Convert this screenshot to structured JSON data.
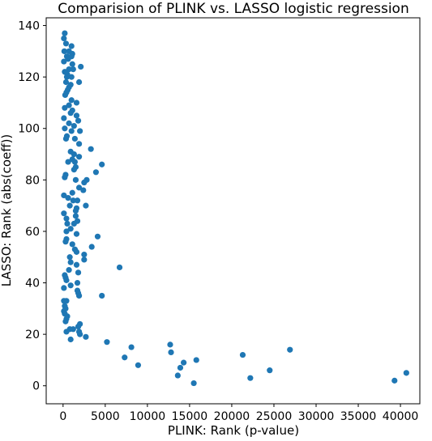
{
  "chart_data": {
    "type": "scatter",
    "title": "Comparision of PLINK vs. LASSO logistic regression",
    "xlabel": "PLINK: Rank (p-value)",
    "ylabel": "LASSO: Rank (abs(coeff))",
    "xlim": [
      -2000,
      42300
    ],
    "ylim": [
      -7,
      143
    ],
    "xticks": [
      0,
      5000,
      10000,
      15000,
      20000,
      25000,
      30000,
      35000,
      40000
    ],
    "yticks": [
      0,
      20,
      40,
      60,
      80,
      100,
      120,
      140
    ],
    "grid": false,
    "legend": "none",
    "marker_color": "#1f77b4",
    "points": [
      [
        200,
        137
      ],
      [
        100,
        135
      ],
      [
        350,
        133
      ],
      [
        1000,
        132
      ],
      [
        150,
        130
      ],
      [
        700,
        130
      ],
      [
        1100,
        129
      ],
      [
        450,
        128
      ],
      [
        1000,
        128
      ],
      [
        100,
        126
      ],
      [
        600,
        127
      ],
      [
        1100,
        125
      ],
      [
        2100,
        124
      ],
      [
        700,
        123
      ],
      [
        1200,
        123
      ],
      [
        200,
        122
      ],
      [
        500,
        121
      ],
      [
        450,
        120
      ],
      [
        1000,
        120
      ],
      [
        350,
        118
      ],
      [
        900,
        117
      ],
      [
        1900,
        118
      ],
      [
        700,
        116
      ],
      [
        550,
        115
      ],
      [
        400,
        114
      ],
      [
        250,
        113
      ],
      [
        1000,
        111
      ],
      [
        1600,
        110
      ],
      [
        700,
        109
      ],
      [
        200,
        108
      ],
      [
        1100,
        107
      ],
      [
        900,
        106
      ],
      [
        1600,
        105
      ],
      [
        100,
        104
      ],
      [
        700,
        102
      ],
      [
        1800,
        103
      ],
      [
        1300,
        101
      ],
      [
        200,
        100
      ],
      [
        1000,
        99
      ],
      [
        2000,
        99
      ],
      [
        450,
        97
      ],
      [
        350,
        96
      ],
      [
        1400,
        96
      ],
      [
        1900,
        94
      ],
      [
        3300,
        92
      ],
      [
        900,
        91
      ],
      [
        1300,
        90
      ],
      [
        1900,
        89
      ],
      [
        1100,
        88
      ],
      [
        600,
        87
      ],
      [
        1400,
        87
      ],
      [
        4600,
        86
      ],
      [
        1500,
        85
      ],
      [
        1300,
        84
      ],
      [
        3900,
        83
      ],
      [
        300,
        82
      ],
      [
        200,
        81
      ],
      [
        1500,
        80
      ],
      [
        2800,
        80
      ],
      [
        2500,
        79
      ],
      [
        1900,
        77
      ],
      [
        2400,
        76
      ],
      [
        1100,
        75
      ],
      [
        100,
        74
      ],
      [
        600,
        73
      ],
      [
        1200,
        72
      ],
      [
        1700,
        72
      ],
      [
        2700,
        70
      ],
      [
        800,
        70
      ],
      [
        1600,
        69
      ],
      [
        1500,
        68
      ],
      [
        100,
        67
      ],
      [
        1500,
        66
      ],
      [
        400,
        65
      ],
      [
        1700,
        64
      ],
      [
        500,
        63
      ],
      [
        1300,
        63
      ],
      [
        900,
        61
      ],
      [
        400,
        60
      ],
      [
        1600,
        59
      ],
      [
        4100,
        58
      ],
      [
        400,
        57
      ],
      [
        300,
        56
      ],
      [
        1100,
        55
      ],
      [
        3400,
        54
      ],
      [
        1400,
        53
      ],
      [
        1600,
        52
      ],
      [
        2500,
        51
      ],
      [
        800,
        50
      ],
      [
        2500,
        49
      ],
      [
        900,
        48
      ],
      [
        1600,
        47
      ],
      [
        6700,
        46
      ],
      [
        700,
        45
      ],
      [
        1800,
        44
      ],
      [
        200,
        43
      ],
      [
        300,
        42
      ],
      [
        400,
        41
      ],
      [
        1700,
        40
      ],
      [
        900,
        39
      ],
      [
        100,
        38
      ],
      [
        1700,
        37
      ],
      [
        1800,
        36
      ],
      [
        1900,
        35
      ],
      [
        4600,
        35
      ],
      [
        100,
        33
      ],
      [
        400,
        33
      ],
      [
        200,
        31
      ],
      [
        300,
        30
      ],
      [
        100,
        29
      ],
      [
        200,
        28
      ],
      [
        500,
        27
      ],
      [
        400,
        26
      ],
      [
        300,
        25
      ],
      [
        2000,
        24
      ],
      [
        1800,
        23
      ],
      [
        1200,
        22
      ],
      [
        800,
        22
      ],
      [
        400,
        21
      ],
      [
        1900,
        21
      ],
      [
        2000,
        20
      ],
      [
        2700,
        19
      ],
      [
        900,
        18
      ],
      [
        5200,
        17
      ],
      [
        12700,
        16
      ],
      [
        8100,
        15
      ],
      [
        26900,
        14
      ],
      [
        12800,
        13
      ],
      [
        21300,
        12
      ],
      [
        7300,
        11
      ],
      [
        15800,
        10
      ],
      [
        14300,
        9
      ],
      [
        8900,
        8
      ],
      [
        13900,
        7
      ],
      [
        24500,
        6
      ],
      [
        40700,
        5
      ],
      [
        13600,
        4
      ],
      [
        22200,
        3
      ],
      [
        39300,
        2
      ],
      [
        15500,
        1
      ]
    ]
  }
}
